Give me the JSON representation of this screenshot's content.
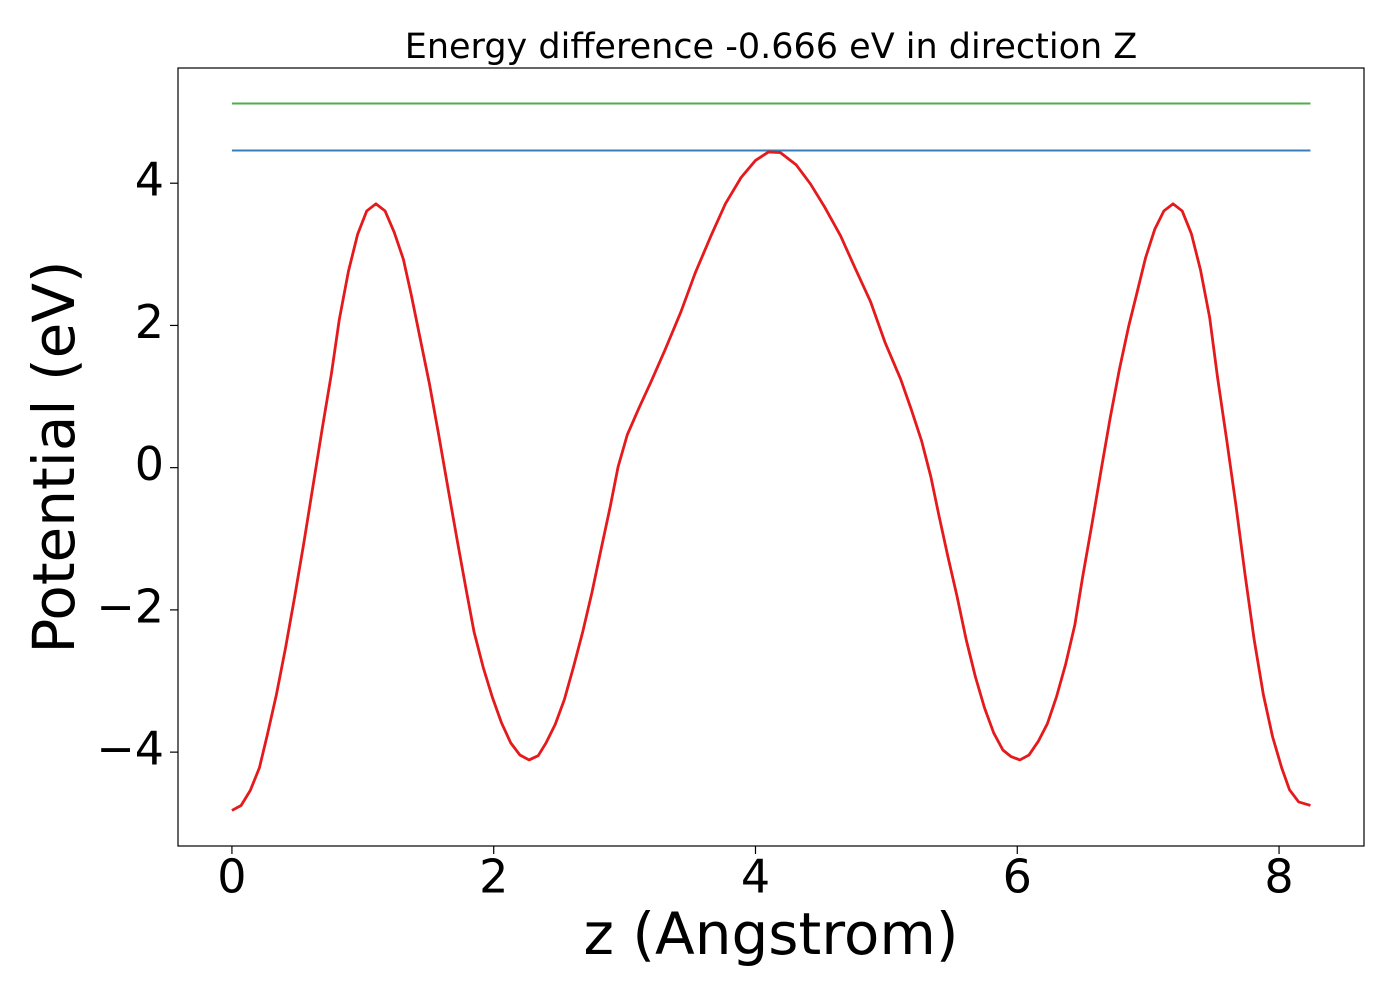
{
  "chart_data": {
    "type": "line",
    "title": "Energy difference -0.666 eV in direction Z",
    "x_label": "z (Angstrom)",
    "y_label": "Potential (eV)",
    "x": [
      0,
      0.07,
      0.14,
      0.21,
      0.27,
      0.34,
      0.41,
      0.48,
      0.55,
      0.62,
      0.69,
      0.76,
      0.82,
      0.89,
      0.96,
      1.03,
      1.1,
      1.17,
      1.24,
      1.31,
      1.37,
      1.44,
      1.51,
      1.58,
      1.65,
      1.72,
      1.79,
      1.85,
      1.92,
      1.99,
      2.06,
      2.13,
      2.2,
      2.27,
      2.34,
      2.4,
      2.47,
      2.54,
      2.61,
      2.68,
      2.75,
      2.82,
      2.89,
      2.95,
      3.02,
      3.11,
      3.2,
      3.31,
      3.43,
      3.54,
      3.66,
      3.77,
      3.89,
      4.0,
      4.1,
      4.19,
      4.31,
      4.42,
      4.53,
      4.65,
      4.76,
      4.88,
      4.99,
      5.11,
      5.19,
      5.27,
      5.34,
      5.4,
      5.47,
      5.54,
      5.61,
      5.68,
      5.75,
      5.82,
      5.89,
      5.95,
      6.02,
      6.09,
      6.16,
      6.23,
      6.3,
      6.37,
      6.44,
      6.5,
      6.57,
      6.64,
      6.71,
      6.78,
      6.85,
      6.92,
      6.98,
      7.05,
      7.12,
      7.19,
      7.26,
      7.33,
      7.4,
      7.47,
      7.53,
      7.6,
      7.67,
      7.74,
      7.81,
      7.88,
      7.95,
      8.02,
      8.08,
      8.15,
      8.24
    ],
    "series": [
      {
        "color": "#e41a1c",
        "values": [
          -4.82,
          -4.75,
          -4.54,
          -4.22,
          -3.76,
          -3.19,
          -2.53,
          -1.81,
          -1.05,
          -0.25,
          0.55,
          1.32,
          2.08,
          2.76,
          3.28,
          3.61,
          3.71,
          3.61,
          3.31,
          2.93,
          2.43,
          1.8,
          1.17,
          0.46,
          -0.28,
          -1.01,
          -1.72,
          -2.31,
          -2.81,
          -3.23,
          -3.59,
          -3.87,
          -4.04,
          -4.11,
          -4.05,
          -3.87,
          -3.61,
          -3.26,
          -2.8,
          -2.31,
          -1.76,
          -1.15,
          -0.55,
          0.01,
          0.46,
          0.84,
          1.2,
          1.66,
          2.19,
          2.74,
          3.26,
          3.71,
          4.08,
          4.32,
          4.44,
          4.43,
          4.26,
          3.99,
          3.66,
          3.26,
          2.81,
          2.33,
          1.76,
          1.24,
          0.82,
          0.37,
          -0.13,
          -0.66,
          -1.25,
          -1.81,
          -2.42,
          -2.94,
          -3.38,
          -3.73,
          -3.97,
          -4.06,
          -4.11,
          -4.04,
          -3.85,
          -3.6,
          -3.22,
          -2.76,
          -2.21,
          -1.53,
          -0.8,
          -0.04,
          0.7,
          1.38,
          1.98,
          2.5,
          2.95,
          3.35,
          3.61,
          3.71,
          3.61,
          3.29,
          2.78,
          2.11,
          1.27,
          0.39,
          -0.52,
          -1.5,
          -2.42,
          -3.19,
          -3.78,
          -4.22,
          -4.53,
          -4.7,
          -4.75
        ]
      }
    ],
    "hlines": [
      {
        "y": 4.46,
        "color": "#377eb8"
      },
      {
        "y": 5.12,
        "color": "#4daf4a"
      }
    ],
    "xlim": [
      -0.412,
      8.649
    ],
    "ylim": [
      -5.32,
      5.62
    ],
    "xticks": [
      0,
      2,
      4,
      6,
      8
    ],
    "yticks": [
      {
        "value": -4,
        "label": "−4"
      },
      {
        "value": -2,
        "label": "−2"
      },
      0,
      2,
      4
    ]
  }
}
